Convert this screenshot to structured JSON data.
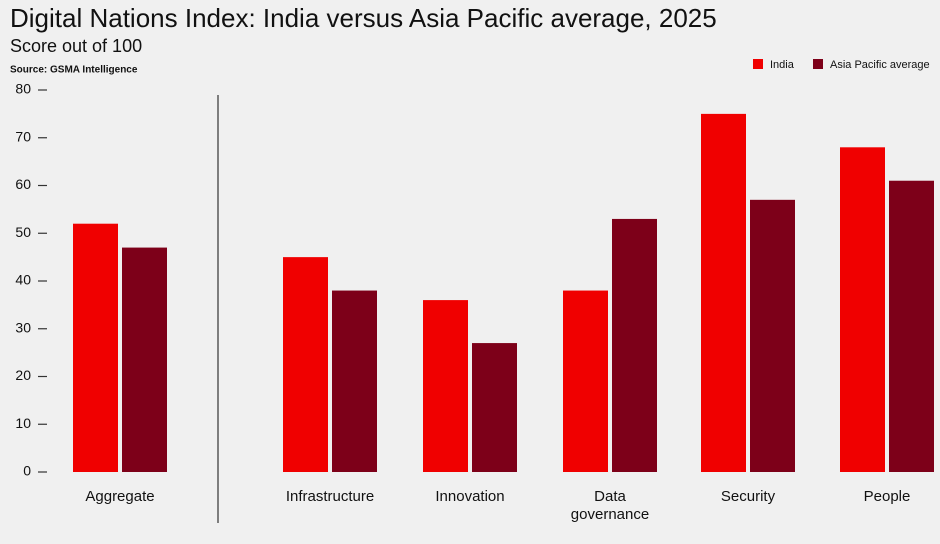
{
  "chart_data": {
    "type": "bar",
    "title": "Digital Nations Index: India versus Asia Pacific average, 2025",
    "subtitle": "Score out of 100",
    "source": "Source: GSMA Intelligence",
    "categories": [
      "Aggregate",
      "Infrastructure",
      "Innovation",
      "Data governance",
      "Security",
      "People"
    ],
    "series": [
      {
        "name": "India",
        "color": "#f00000",
        "values": [
          52,
          45,
          36,
          38,
          75,
          68
        ]
      },
      {
        "name": "Asia Pacific average",
        "color": "#7d0019",
        "values": [
          47,
          38,
          27,
          53,
          57,
          61
        ]
      }
    ],
    "ylim": [
      0,
      80
    ],
    "yticks": [
      0,
      10,
      20,
      30,
      40,
      50,
      60,
      70,
      80
    ],
    "grid": false,
    "legend": "top-right"
  }
}
